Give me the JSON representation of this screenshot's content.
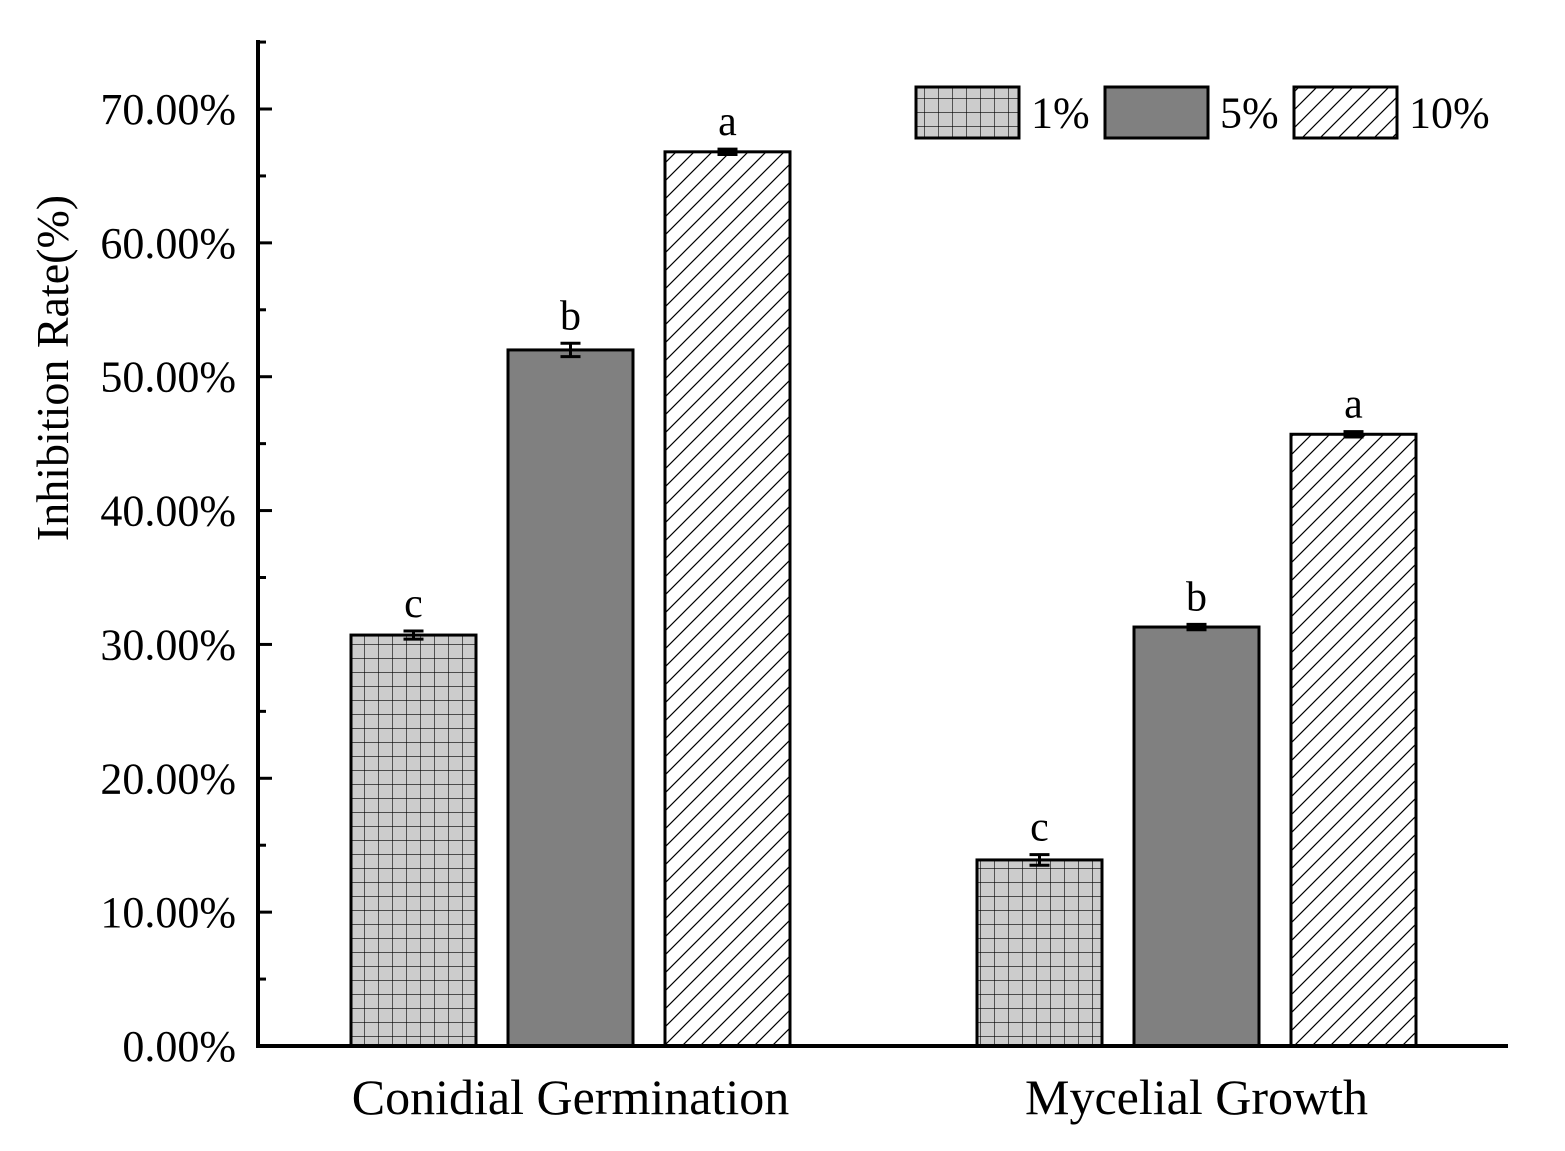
{
  "chart_data": {
    "type": "bar",
    "title": "",
    "xlabel": "",
    "ylabel": "Inhibition Rate(%)",
    "ylim": [
      0,
      75
    ],
    "yticks": [
      0,
      10,
      20,
      30,
      40,
      50,
      60,
      70
    ],
    "ytick_labels": [
      "0.00%",
      "10.00%",
      "20.00%",
      "30.00%",
      "40.00%",
      "50.00%",
      "60.00%",
      "70.00%"
    ],
    "categories": [
      "Conidial Germination",
      "Mycelial Growth"
    ],
    "series": [
      {
        "name": "1%",
        "values": [
          30.7,
          13.9
        ],
        "errors": [
          0.3,
          0.4
        ],
        "significance": [
          "c",
          "c"
        ],
        "pattern": "grid",
        "fill": "#cccccc"
      },
      {
        "name": "5%",
        "values": [
          52.0,
          31.3
        ],
        "errors": [
          0.5,
          0.2
        ],
        "significance": [
          "b",
          "b"
        ],
        "pattern": "solid",
        "fill": "#808080"
      },
      {
        "name": "10%",
        "values": [
          66.8,
          45.7
        ],
        "errors": [
          0.2,
          0.2
        ],
        "significance": [
          "a",
          "a"
        ],
        "pattern": "diagonal",
        "fill": "#ffffff"
      }
    ],
    "legend": {
      "placement": "top-right",
      "entries": [
        "1%",
        "5%",
        "10%"
      ]
    },
    "grid": false
  },
  "colors": {
    "axis": "#000000",
    "stroke": "#000000"
  }
}
